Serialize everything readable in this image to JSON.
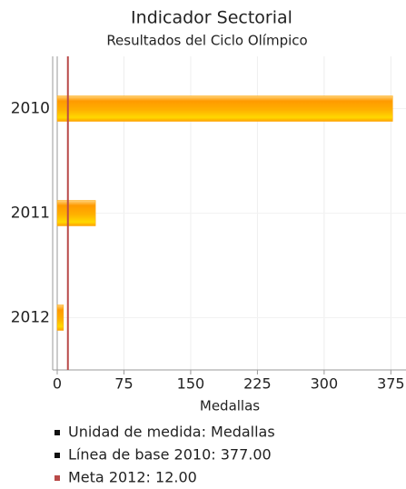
{
  "chart_data": {
    "type": "bar",
    "orientation": "horizontal",
    "title": "Indicador Sectorial",
    "subtitle": "Resultados del Ciclo Olímpico",
    "categories": [
      "2010",
      "2011",
      "2012"
    ],
    "values": [
      377,
      43,
      7
    ],
    "color": "#ffa500",
    "xlim": [
      0,
      392
    ],
    "xticks": [
      0,
      75,
      150,
      225,
      300,
      375
    ],
    "xlabel": "Medallas",
    "grid": true,
    "target_line": {
      "value": 12,
      "color": "#b94a48"
    },
    "legend": [
      {
        "label": "Unidad de medida: Medallas",
        "color": "#111111"
      },
      {
        "label": "Línea de base 2010: 377.00",
        "color": "#111111"
      },
      {
        "label": "Meta 2012: 12.00",
        "color": "#b94a48"
      }
    ]
  }
}
